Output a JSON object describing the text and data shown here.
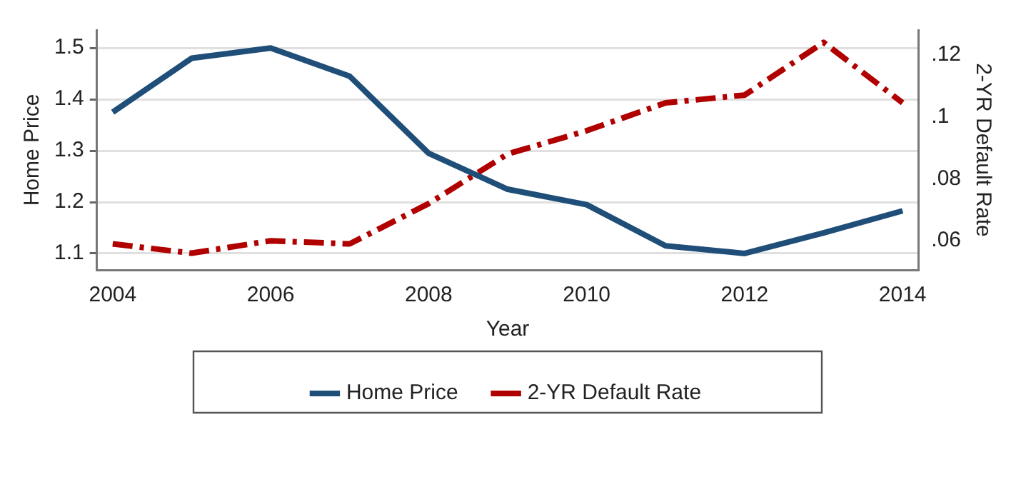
{
  "chart_data": {
    "type": "line",
    "xlabel": "Year",
    "ylabel": "Home Price",
    "y2label": "2-YR Default Rate",
    "x": [
      2004,
      2005,
      2006,
      2007,
      2008,
      2009,
      2010,
      2011,
      2012,
      2013,
      2014
    ],
    "series": [
      {
        "name": "Home Price",
        "color": "#1f4e79",
        "line_style": "solid",
        "values": [
          1.375,
          1.48,
          1.5,
          1.445,
          1.295,
          1.225,
          1.195,
          1.115,
          1.1,
          1.14,
          1.183
        ]
      },
      {
        "name": "2-YR Default Rate",
        "color": "#b00000",
        "line_style": "dashed",
        "axis": "y2",
        "values": [
          0.059,
          0.056,
          0.06,
          0.059,
          0.072,
          0.088,
          0.0955,
          0.1045,
          0.107,
          0.124,
          0.1045
        ]
      }
    ],
    "xlim": [
      2003.8,
      2014.2
    ],
    "xticks": [
      2004,
      2006,
      2008,
      2010,
      2012,
      2014
    ],
    "ylim": [
      1.068,
      1.535
    ],
    "yticks": [
      1.1,
      1.2,
      1.3,
      1.4,
      1.5
    ],
    "y2lim": [
      0.0506,
      0.128
    ],
    "y2ticks": [
      {
        "value": 0.06,
        "label": ".06"
      },
      {
        "value": 0.08,
        "label": ".08"
      },
      {
        "value": 0.1,
        "label": ".1"
      },
      {
        "value": 0.12,
        "label": ".12"
      }
    ],
    "grid": "y",
    "legend": "bottom",
    "marker": "none"
  }
}
